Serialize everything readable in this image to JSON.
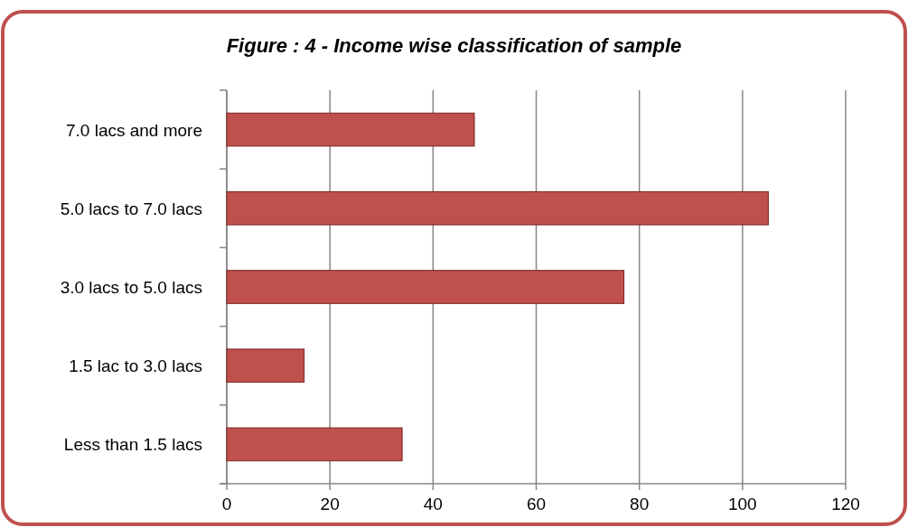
{
  "chart_data": {
    "type": "bar",
    "orientation": "horizontal",
    "title": "Figure : 4 - Income wise classification of sample",
    "categories": [
      "7.0 lacs and more",
      "5.0 lacs to 7.0 lacs",
      "3.0 lacs to 5.0 lacs",
      "1.5 lac to 3.0 lacs",
      "Less than 1.5 lacs"
    ],
    "values": [
      48,
      105,
      77,
      15,
      34
    ],
    "color": "#c0504d",
    "xlim": [
      0,
      120
    ],
    "xticks": [
      0,
      20,
      40,
      60,
      80,
      100,
      120
    ],
    "grid": "x"
  }
}
